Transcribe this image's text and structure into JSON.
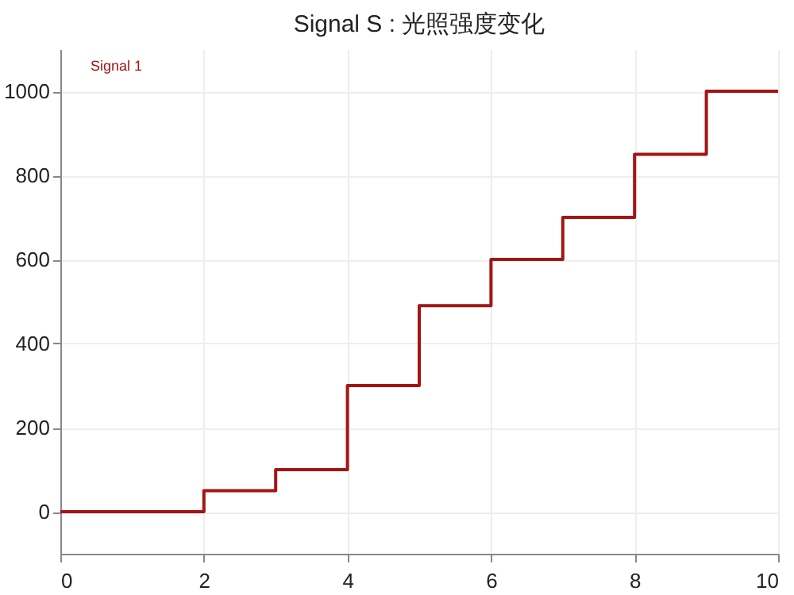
{
  "chart_data": {
    "type": "step",
    "title": "Signal S : 光照强度变化",
    "x": [
      0,
      1,
      2,
      3,
      4,
      5,
      6,
      7,
      8,
      9,
      10
    ],
    "series": [
      {
        "name": "Signal 1",
        "color": "#a31515",
        "values": [
          0,
          0,
          50,
          100,
          300,
          490,
          600,
          700,
          850,
          1000,
          1000
        ]
      }
    ],
    "xlim": [
      0,
      10
    ],
    "xticks": [
      0,
      2,
      4,
      6,
      8,
      10
    ],
    "ylim": [
      -100,
      1100
    ],
    "yticks": [
      0,
      200,
      400,
      600,
      800,
      1000
    ],
    "grid": true,
    "legend": "top left"
  }
}
